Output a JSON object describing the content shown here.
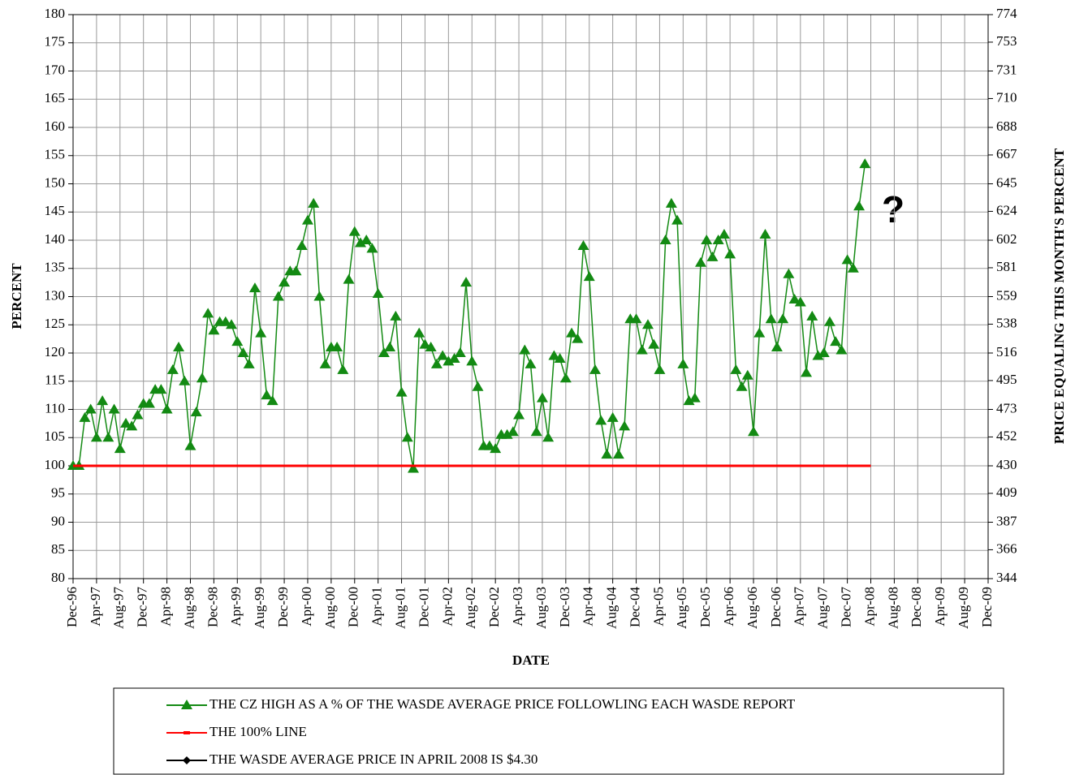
{
  "chart_data": {
    "type": "line",
    "xlabel": "DATE",
    "ylabel": "PERCENT",
    "y2label": "PRICE EQUALING THIS MONTH'S PERCENT",
    "annotations": [
      {
        "text": "?",
        "color": "#ff0000"
      }
    ],
    "ylim": [
      80,
      180
    ],
    "yticks": [
      80,
      85,
      90,
      95,
      100,
      105,
      110,
      115,
      120,
      125,
      130,
      135,
      140,
      145,
      150,
      155,
      160,
      165,
      170,
      175,
      180
    ],
    "y2lim": [
      344,
      774
    ],
    "y2ticks": [
      344,
      366,
      387,
      409,
      430,
      452,
      473,
      495,
      516,
      538,
      559,
      581,
      602,
      624,
      645,
      667,
      688,
      710,
      731,
      753,
      774
    ],
    "grid": true,
    "categories": [
      "Dec-96",
      null,
      null,
      null,
      "Apr-97",
      null,
      null,
      null,
      "Aug-97",
      null,
      null,
      null,
      "Dec-97",
      null,
      null,
      null,
      "Apr-98",
      null,
      null,
      null,
      "Aug-98",
      null,
      null,
      null,
      "Dec-98",
      null,
      null,
      null,
      "Apr-99",
      null,
      null,
      null,
      "Aug-99",
      null,
      null,
      null,
      "Dec-99",
      null,
      null,
      null,
      "Apr-00",
      null,
      null,
      null,
      "Aug-00",
      null,
      null,
      null,
      "Dec-00",
      null,
      null,
      null,
      "Apr-01",
      null,
      null,
      null,
      "Aug-01",
      null,
      null,
      null,
      "Dec-01",
      null,
      null,
      null,
      "Apr-02",
      null,
      null,
      null,
      "Aug-02",
      null,
      null,
      null,
      "Dec-02",
      null,
      null,
      null,
      "Apr-03",
      null,
      null,
      null,
      "Aug-03",
      null,
      null,
      null,
      "Dec-03",
      null,
      null,
      null,
      "Apr-04",
      null,
      null,
      null,
      "Aug-04",
      null,
      null,
      null,
      "Dec-04",
      null,
      null,
      null,
      "Apr-05",
      null,
      null,
      null,
      "Aug-05",
      null,
      null,
      null,
      "Dec-05",
      null,
      null,
      null,
      "Apr-06",
      null,
      null,
      null,
      "Aug-06",
      null,
      null,
      null,
      "Dec-06",
      null,
      null,
      null,
      "Apr-07",
      null,
      null,
      null,
      "Aug-07",
      null,
      null,
      null,
      "Dec-07",
      null,
      null,
      null,
      "Apr-08",
      null,
      null,
      null,
      "Aug-08",
      null,
      null,
      null,
      "Dec-08",
      null,
      null,
      null,
      "Apr-09",
      null,
      null,
      null,
      "Aug-09",
      null,
      null,
      null,
      "Dec-09"
    ],
    "series": [
      {
        "name": "THE CZ HIGH AS A % OF THE WASDE AVERAGE PRICE FOLLOWLING EACH WASDE REPORT",
        "color": "#138a13",
        "marker": "triangle",
        "values": [
          100,
          100,
          108.5,
          110,
          105,
          111.5,
          105,
          110,
          103,
          107.5,
          107,
          109,
          111,
          111,
          113.5,
          113.5,
          110,
          117,
          121,
          115,
          103.5,
          109.5,
          115.5,
          127,
          124,
          125.5,
          125.5,
          125,
          122,
          120,
          118,
          131.5,
          123.5,
          112.5,
          111.5,
          130,
          132.5,
          134.5,
          134.5,
          139,
          143.5,
          146.5,
          130,
          118,
          121,
          121,
          117,
          133,
          141.5,
          139.5,
          140,
          138.5,
          130.5,
          120,
          121,
          126.5,
          113,
          105,
          99.5,
          123.5,
          121.5,
          121,
          118,
          119.5,
          118.5,
          119,
          120,
          132.5,
          118.5,
          114,
          103.5,
          103.5,
          103,
          105.5,
          105.5,
          106,
          109,
          120.5,
          118,
          106,
          112,
          105,
          119.5,
          119,
          115.5,
          123.5,
          122.5,
          139,
          133.5,
          117,
          108,
          102,
          108.5,
          102,
          107,
          126,
          126,
          120.5,
          125,
          121.5,
          117,
          140,
          146.5,
          143.5,
          118,
          111.5,
          112,
          136,
          140,
          137,
          140,
          141,
          137.5,
          117,
          114,
          116,
          106,
          123.5,
          141,
          126,
          121,
          126,
          134,
          129.5,
          129,
          116.5,
          126.5,
          119.5,
          120,
          125.5,
          122,
          120.5,
          136.5,
          135,
          146,
          153.5,
          null,
          null,
          null,
          null,
          null,
          null,
          null,
          null,
          null,
          null,
          null,
          null,
          null,
          null,
          null,
          null,
          null,
          null,
          null,
          null,
          null
        ]
      },
      {
        "name": "THE 100% LINE",
        "color": "#ff0000",
        "marker": "dash",
        "values": [
          100,
          100,
          100,
          100,
          100,
          100,
          100,
          100,
          100,
          100,
          100,
          100,
          100,
          100,
          100,
          100,
          100,
          100,
          100,
          100,
          100,
          100,
          100,
          100,
          100,
          100,
          100,
          100,
          100,
          100,
          100,
          100,
          100,
          100,
          100,
          100,
          100,
          100,
          100,
          100,
          100,
          100,
          100,
          100,
          100,
          100,
          100,
          100,
          100,
          100,
          100,
          100,
          100,
          100,
          100,
          100,
          100,
          100,
          100,
          100,
          100,
          100,
          100,
          100,
          100,
          100,
          100,
          100,
          100,
          100,
          100,
          100,
          100,
          100,
          100,
          100,
          100,
          100,
          100,
          100,
          100,
          100,
          100,
          100,
          100,
          100,
          100,
          100,
          100,
          100,
          100,
          100,
          100,
          100,
          100,
          100,
          100,
          100,
          100,
          100,
          100,
          100,
          100,
          100,
          100,
          100,
          100,
          100,
          100,
          100,
          100,
          100,
          100,
          100,
          100,
          100,
          100,
          100,
          100,
          100,
          100,
          100,
          100,
          100,
          100,
          100,
          100,
          100,
          100,
          100,
          100,
          100,
          100,
          100,
          100,
          100,
          100,
          null,
          null,
          null,
          null,
          null,
          null,
          null,
          null,
          null,
          null,
          null,
          null,
          null,
          null,
          null,
          null,
          null,
          null,
          null,
          null
        ]
      },
      {
        "name": "THE WASDE AVERAGE PRICE IN APRIL 2008 IS $4.30",
        "color": "#000000",
        "marker": "diamond",
        "values": [
          null,
          null,
          null,
          null,
          null,
          null,
          null,
          null,
          null,
          null,
          null,
          null,
          null,
          null,
          null,
          null,
          null,
          null,
          null,
          null,
          null,
          null,
          null,
          null,
          null,
          null,
          null,
          null,
          null,
          null,
          null,
          null,
          null,
          null,
          null,
          null,
          null,
          null,
          null,
          null,
          null,
          null,
          null,
          null,
          null,
          null,
          null,
          null,
          null,
          null,
          null,
          null,
          null,
          null,
          null,
          null,
          null,
          null,
          null,
          null,
          null,
          null,
          null,
          null,
          null,
          null,
          null,
          null,
          null,
          null,
          null,
          null,
          null,
          null,
          null,
          null,
          null,
          null,
          null,
          null,
          null,
          null,
          null,
          null,
          null,
          null,
          null,
          null,
          null,
          null,
          null,
          null,
          null,
          null,
          null,
          null,
          null,
          null,
          null,
          null,
          null,
          null,
          null,
          null,
          null,
          null,
          null,
          null,
          null,
          null,
          null,
          null,
          null,
          null,
          null,
          null,
          null,
          null,
          null,
          null,
          null,
          null,
          null,
          null,
          null,
          null,
          null,
          null,
          null,
          null,
          null,
          null,
          null,
          null,
          null,
          null,
          null,
          null,
          null,
          null,
          null,
          null,
          null,
          null,
          null,
          null,
          null,
          null,
          null,
          null,
          null,
          null,
          null,
          null,
          null,
          null,
          null
        ]
      }
    ]
  }
}
